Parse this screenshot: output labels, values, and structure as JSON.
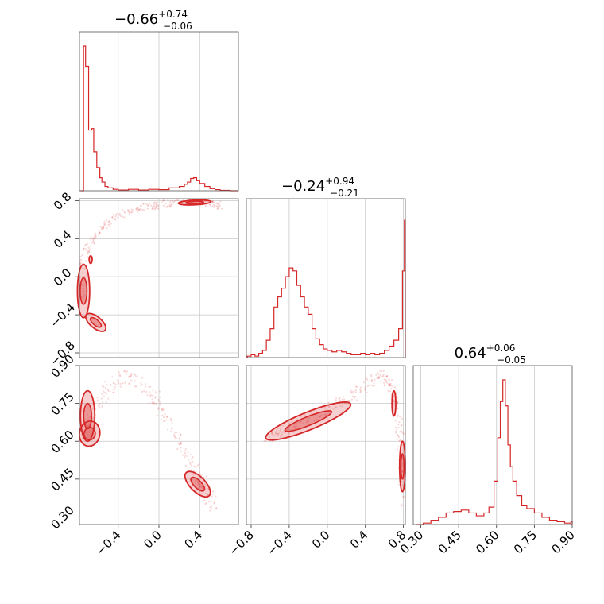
{
  "chart_data": {
    "type": "corner",
    "color": "#d62728",
    "grid": true,
    "params": [
      {
        "median": "0.66",
        "median_sign": "−",
        "plus": "0.74",
        "minus": "0.06",
        "range": [
          -0.78,
          0.78
        ]
      },
      {
        "median": "0.24",
        "median_sign": "−",
        "plus": "0.94",
        "minus": "0.21",
        "range": [
          -0.85,
          0.82
        ]
      },
      {
        "median": "0.64",
        "median_sign": "",
        "plus": "0.06",
        "minus": "0.05",
        "range": [
          0.27,
          0.9
        ]
      }
    ],
    "ticks": {
      "p0": {
        "values": [
          -0.4,
          0.0,
          0.4
        ],
        "labels": [
          "−0.4",
          "0.0",
          "0.4"
        ]
      },
      "p1": {
        "values": [
          -0.8,
          -0.4,
          0.0,
          0.4,
          0.8
        ],
        "labels": [
          "−0.8",
          "−0.4",
          "0.0",
          "0.4",
          "0.8"
        ]
      },
      "p2": {
        "values": [
          0.3,
          0.45,
          0.6,
          0.75,
          0.9
        ],
        "labels": [
          "0.30",
          "0.45",
          "0.60",
          "0.75",
          "0.90"
        ]
      }
    },
    "hist_p0": {
      "x": [
        -0.77,
        -0.74,
        -0.72,
        -0.69,
        -0.66,
        -0.64,
        -0.61,
        -0.58,
        -0.56,
        -0.53,
        -0.5,
        -0.45,
        -0.4,
        -0.3,
        -0.2,
        -0.1,
        0.0,
        0.1,
        0.15,
        0.2,
        0.25,
        0.28,
        0.31,
        0.34,
        0.37,
        0.4,
        0.45,
        0.5,
        0.55,
        0.6,
        0.7
      ],
      "y": [
        0.0,
        1.0,
        0.86,
        0.42,
        0.43,
        0.27,
        0.16,
        0.09,
        0.06,
        0.03,
        0.02,
        0.01,
        0.005,
        0.01,
        0.005,
        0.01,
        0.008,
        0.02,
        0.02,
        0.03,
        0.045,
        0.06,
        0.085,
        0.09,
        0.07,
        0.05,
        0.03,
        0.015,
        0.008,
        0.003,
        0.0
      ]
    },
    "hist_p1": {
      "x": [
        -0.84,
        -0.8,
        -0.76,
        -0.72,
        -0.68,
        -0.64,
        -0.6,
        -0.56,
        -0.52,
        -0.48,
        -0.44,
        -0.4,
        -0.36,
        -0.32,
        -0.28,
        -0.24,
        -0.2,
        -0.16,
        -0.12,
        -0.08,
        -0.04,
        0.0,
        0.05,
        0.1,
        0.15,
        0.2,
        0.25,
        0.3,
        0.35,
        0.4,
        0.45,
        0.5,
        0.55,
        0.6,
        0.65,
        0.7,
        0.75,
        0.79,
        0.81
      ],
      "y": [
        0.01,
        0.02,
        0.01,
        0.03,
        0.05,
        0.12,
        0.2,
        0.35,
        0.42,
        0.48,
        0.56,
        0.62,
        0.6,
        0.5,
        0.42,
        0.35,
        0.3,
        0.2,
        0.13,
        0.09,
        0.06,
        0.05,
        0.04,
        0.05,
        0.04,
        0.03,
        0.02,
        0.02,
        0.03,
        0.02,
        0.03,
        0.02,
        0.03,
        0.05,
        0.08,
        0.12,
        0.2,
        0.6,
        0.95
      ]
    },
    "hist_p2": {
      "x": [
        0.28,
        0.31,
        0.34,
        0.37,
        0.4,
        0.43,
        0.46,
        0.49,
        0.52,
        0.55,
        0.57,
        0.59,
        0.605,
        0.615,
        0.625,
        0.635,
        0.645,
        0.655,
        0.665,
        0.68,
        0.7,
        0.72,
        0.75,
        0.78,
        0.81,
        0.84,
        0.87,
        0.895
      ],
      "y": [
        0.0,
        0.01,
        0.03,
        0.05,
        0.08,
        0.09,
        0.1,
        0.08,
        0.06,
        0.08,
        0.12,
        0.3,
        0.6,
        0.85,
        1.0,
        0.82,
        0.55,
        0.4,
        0.3,
        0.2,
        0.13,
        0.11,
        0.08,
        0.05,
        0.03,
        0.02,
        0.01,
        0.02
      ]
    },
    "path_p0_p1": {
      "x": [
        -0.77,
        -0.78,
        -0.76,
        -0.73,
        -0.69,
        -0.64,
        -0.58,
        -0.52,
        -0.44,
        -0.35,
        -0.25,
        -0.15,
        -0.05,
        0.05,
        0.15,
        0.25,
        0.35,
        0.45,
        0.55,
        0.62
      ],
      "y": [
        -0.2,
        -0.05,
        0.1,
        0.22,
        0.32,
        0.41,
        0.48,
        0.55,
        0.61,
        0.66,
        0.7,
        0.73,
        0.75,
        0.77,
        0.78,
        0.79,
        0.79,
        0.78,
        0.77,
        0.74
      ]
    },
    "path_p0_p2": {
      "x": [
        -0.75,
        -0.68,
        -0.6,
        -0.5,
        -0.4,
        -0.3,
        -0.2,
        -0.1,
        0.0,
        0.1,
        0.2,
        0.3,
        0.4,
        0.48,
        0.55
      ],
      "y": [
        0.63,
        0.68,
        0.74,
        0.8,
        0.84,
        0.86,
        0.84,
        0.8,
        0.75,
        0.67,
        0.6,
        0.52,
        0.45,
        0.39,
        0.34
      ]
    },
    "path_p1_p2": {
      "x": [
        -0.65,
        -0.55,
        -0.45,
        -0.35,
        -0.25,
        -0.15,
        -0.05,
        0.05,
        0.15,
        0.25,
        0.35,
        0.45,
        0.55,
        0.62,
        0.68,
        0.72,
        0.75,
        0.77,
        0.79,
        0.8,
        0.81
      ],
      "y": [
        0.6,
        0.62,
        0.64,
        0.66,
        0.68,
        0.7,
        0.72,
        0.74,
        0.76,
        0.78,
        0.8,
        0.83,
        0.86,
        0.84,
        0.8,
        0.75,
        0.68,
        0.6,
        0.5,
        0.42,
        0.36
      ]
    }
  }
}
